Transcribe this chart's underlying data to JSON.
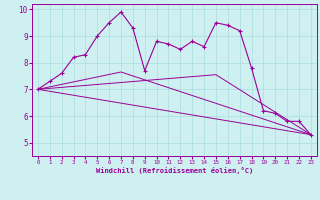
{
  "xlabel": "Windchill (Refroidissement éolien,°C)",
  "bg_color": "#cff0f0",
  "grid_color": "#aadddd",
  "line_color": "#990099",
  "xlim": [
    -0.5,
    23.5
  ],
  "ylim": [
    4.5,
    10.2
  ],
  "yticks": [
    5,
    6,
    7,
    8,
    9,
    10
  ],
  "xticks": [
    0,
    1,
    2,
    3,
    4,
    5,
    6,
    7,
    8,
    9,
    10,
    11,
    12,
    13,
    14,
    15,
    16,
    17,
    18,
    19,
    20,
    21,
    22,
    23
  ],
  "main_x": [
    0,
    1,
    2,
    3,
    4,
    5,
    6,
    7,
    8,
    9,
    10,
    11,
    12,
    13,
    14,
    15,
    16,
    17,
    18,
    19,
    20,
    21,
    22,
    23
  ],
  "main_y": [
    7.0,
    7.3,
    7.6,
    8.2,
    8.3,
    9.0,
    9.5,
    9.9,
    9.3,
    7.7,
    8.8,
    8.7,
    8.5,
    8.8,
    8.6,
    9.5,
    9.4,
    9.2,
    7.8,
    6.2,
    6.1,
    5.8,
    5.8,
    5.3
  ],
  "line1_x": [
    0,
    23
  ],
  "line1_y": [
    7.0,
    5.3
  ],
  "line2_x": [
    0,
    7,
    23
  ],
  "line2_y": [
    7.0,
    7.65,
    5.3
  ],
  "line3_x": [
    0,
    15,
    23
  ],
  "line3_y": [
    7.0,
    7.55,
    5.3
  ]
}
